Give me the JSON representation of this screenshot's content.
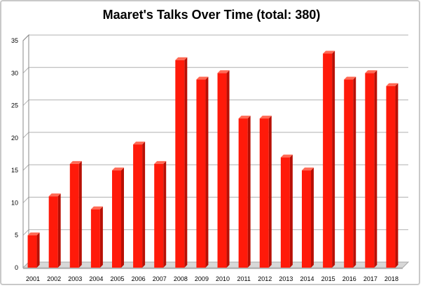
{
  "chart_data": {
    "type": "bar",
    "title": "Maaret's Talks Over Time (total: 380)",
    "xlabel": "",
    "ylabel": "",
    "categories": [
      "2001",
      "2002",
      "2003",
      "2004",
      "2005",
      "2006",
      "2007",
      "2008",
      "2009",
      "2010",
      "2011",
      "2012",
      "2013",
      "2014",
      "2015",
      "2016",
      "2017",
      "2018"
    ],
    "values": [
      5,
      11,
      16,
      9,
      15,
      19,
      16,
      32,
      29,
      30,
      23,
      23,
      17,
      15,
      33,
      29,
      30,
      28
    ],
    "ylim": [
      0,
      35
    ],
    "yticks": [
      0,
      5,
      10,
      15,
      20,
      25,
      30,
      35
    ],
    "grid": true,
    "legend": "none",
    "bar_color": "#ff1a0a",
    "bar_side_color": "#b81005",
    "bar_top_color": "#ff6a55",
    "floor_color": "#d8d8d8"
  }
}
